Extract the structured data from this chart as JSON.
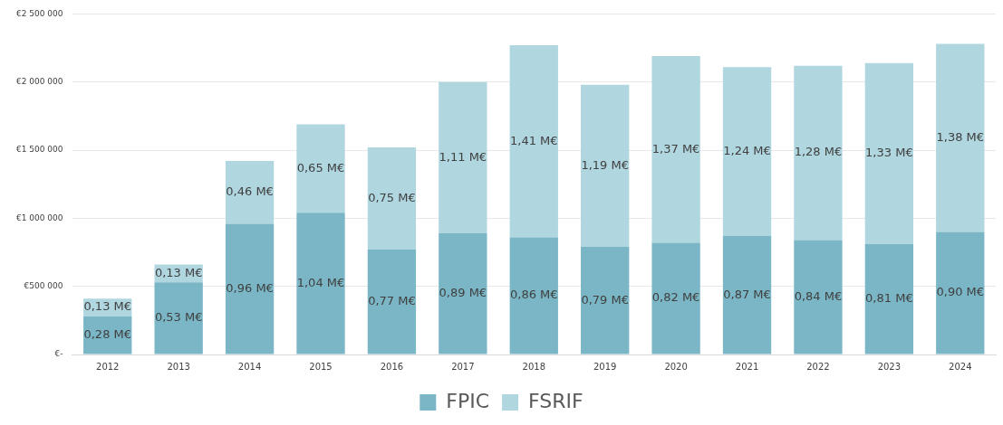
{
  "chart_data": {
    "type": "bar",
    "stacked": true,
    "grid": "y",
    "legend": "bottom",
    "categories": [
      "2012",
      "2013",
      "2014",
      "2015",
      "2016",
      "2017",
      "2018",
      "2019",
      "2020",
      "2021",
      "2022",
      "2023",
      "2024"
    ],
    "ylim": [
      0,
      2500000
    ],
    "yticks": [
      {
        "value": 0,
        "label": "€-"
      },
      {
        "value": 500000,
        "label": "€500 000"
      },
      {
        "value": 1000000,
        "label": "€1 000 000"
      },
      {
        "value": 1500000,
        "label": "€1 500 000"
      },
      {
        "value": 2000000,
        "label": "€2 000 000"
      },
      {
        "value": 2500000,
        "label": "€2 500 000"
      }
    ],
    "series": [
      {
        "name": "FPIC",
        "color": "#7ab6c6",
        "values": [
          280000,
          530000,
          960000,
          1040000,
          770000,
          890000,
          860000,
          790000,
          820000,
          870000,
          840000,
          810000,
          900000
        ],
        "value_labels": [
          "0,28 M€",
          "0,53 M€",
          "0,96 M€",
          "1,04 M€",
          "0,77 M€",
          "0,89 M€",
          "0,86 M€",
          "0,79 M€",
          "0,82 M€",
          "0,87 M€",
          "0,84 M€",
          "0,81 M€",
          "0,90 M€"
        ]
      },
      {
        "name": "FSRIF",
        "color": "#b0d6e0",
        "values": [
          130000,
          130000,
          460000,
          650000,
          750000,
          1110000,
          1410000,
          1190000,
          1370000,
          1240000,
          1280000,
          1330000,
          1380000
        ],
        "value_labels": [
          "0,13 M€",
          "0,13 M€",
          "0,46 M€",
          "0,65 M€",
          "0,75 M€",
          "1,11 M€",
          "1,41 M€",
          "1,19 M€",
          "1,37 M€",
          "1,24 M€",
          "1,28 M€",
          "1,33 M€",
          "1,38 M€"
        ]
      }
    ]
  }
}
